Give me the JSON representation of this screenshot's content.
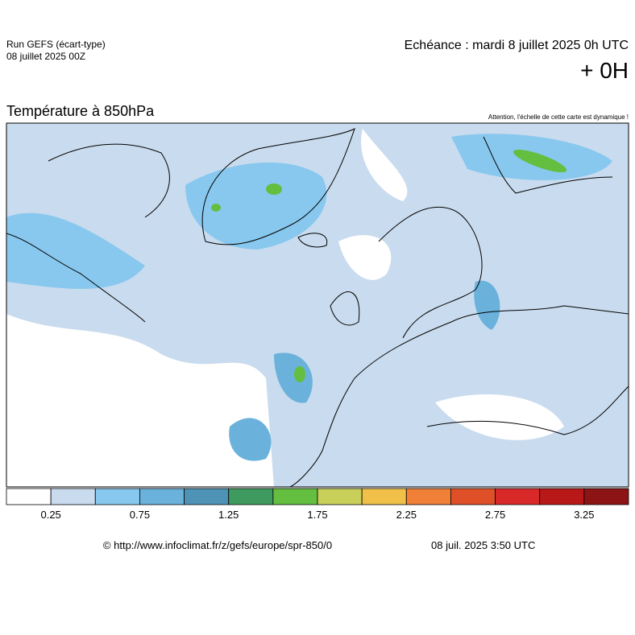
{
  "header": {
    "run": "Run GEFS (écart-type)",
    "run_date": "08 juillet 2025 00Z",
    "valid": "Echéance : mardi 8 juillet 2025 0h UTC",
    "lead": "+ 0H"
  },
  "map": {
    "title": "Température à 850hPa",
    "note": "Attention, l'échelle de cette carte est dynamique !"
  },
  "legend": {
    "colors": [
      "#ffffff",
      "#c9dbee",
      "#88c8ee",
      "#6ab2dc",
      "#4e92b6",
      "#3e9a5e",
      "#64be40",
      "#c8d05a",
      "#f0c048",
      "#f08038",
      "#e05028",
      "#d82828",
      "#b81818",
      "#8c1414"
    ],
    "labels": [
      "0.25",
      "0.75",
      "1.25",
      "1.75",
      "2.25",
      "2.75",
      "3.25"
    ]
  },
  "footer": {
    "source": "© http://www.infoclimat.fr/z/gefs/europe/spr-850/0",
    "generated": "08 juil. 2025  3:50 UTC"
  }
}
